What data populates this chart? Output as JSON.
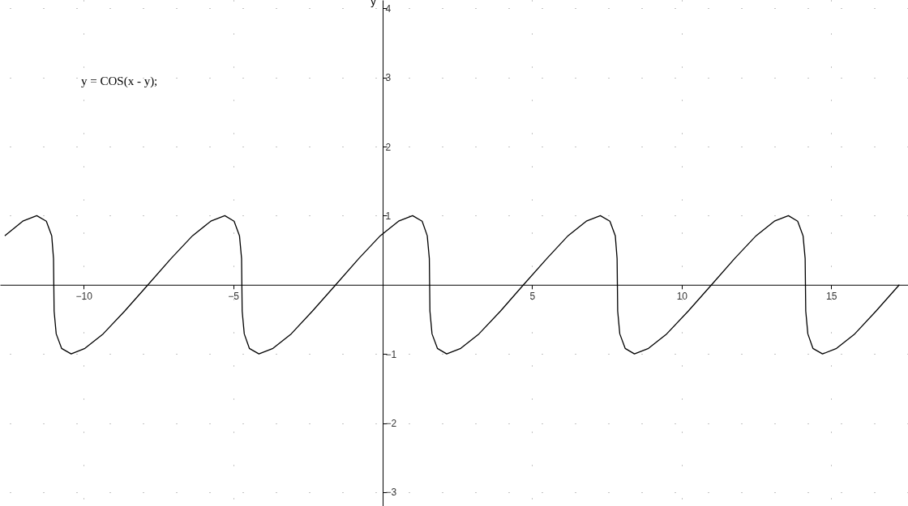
{
  "chart_data": {
    "type": "line",
    "ylabel": "y",
    "annotations": [
      "y = COS(x - y);"
    ],
    "xlim": [
      -12.8,
      17.57
    ],
    "ylim": [
      -3.2,
      4.12
    ],
    "xticks": [
      -10,
      -5,
      5,
      10,
      15
    ],
    "yticks": [
      -3,
      -2,
      -1,
      1,
      2,
      3,
      4
    ],
    "grid": true,
    "marker": "none",
    "line_style": "solid",
    "series": [
      {
        "color": "#000000",
        "x": [
          -12.64,
          -12.04,
          -11.57,
          -11.25,
          -11.07,
          -11.01,
          -11.0,
          -10.99,
          -10.92,
          -10.74,
          -10.42,
          -9.96,
          -9.35,
          -8.63,
          -7.85,
          -7.08,
          -6.36,
          -5.75,
          -5.28,
          -4.97,
          -4.79,
          -4.72,
          -4.71,
          -4.7,
          -4.63,
          -4.46,
          -4.14,
          -3.67,
          -3.06,
          -2.35,
          -1.57,
          -0.8,
          -0.08,
          0.53,
          1.0,
          1.32,
          1.49,
          1.56,
          1.57,
          1.58,
          1.65,
          1.83,
          2.14,
          2.61,
          3.22,
          3.94,
          4.71,
          5.49,
          6.2,
          6.81,
          7.28,
          7.6,
          7.78,
          7.84,
          7.85,
          7.86,
          7.93,
          8.11,
          8.42,
          8.89,
          9.5,
          10.22,
          11.0,
          11.77,
          12.49,
          13.1,
          13.57,
          13.88,
          14.06,
          14.13,
          14.14,
          14.15,
          14.22,
          14.39,
          14.71,
          15.18,
          15.79,
          16.5,
          17.28
        ],
        "values": [
          0.71,
          0.92,
          1,
          0.92,
          0.71,
          0.38,
          0,
          -0.38,
          -0.71,
          -0.92,
          -1,
          -0.92,
          -0.71,
          -0.38,
          0,
          0.38,
          0.71,
          0.92,
          1,
          0.92,
          0.71,
          0.38,
          0,
          -0.38,
          -0.71,
          -0.92,
          -1,
          -0.92,
          -0.71,
          -0.38,
          0,
          0.38,
          0.71,
          0.92,
          1,
          0.92,
          0.71,
          0.38,
          0,
          -0.38,
          -0.71,
          -0.92,
          -1,
          -0.92,
          -0.71,
          -0.38,
          0,
          0.38,
          0.71,
          0.92,
          1,
          0.92,
          0.71,
          0.38,
          0,
          -0.38,
          -0.71,
          -0.92,
          -1,
          -0.92,
          -0.71,
          -0.38,
          0,
          0.38,
          0.71,
          0.92,
          1,
          0.92,
          0.71,
          0.38,
          0,
          -0.38,
          -0.71,
          -0.92,
          -1,
          -0.92,
          -0.71,
          -0.38,
          0
        ]
      }
    ]
  }
}
